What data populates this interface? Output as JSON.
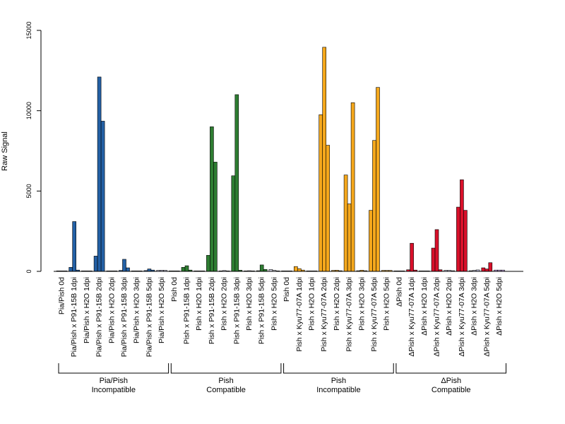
{
  "chart_data": {
    "type": "bar",
    "ylabel": "Raw Signal",
    "ylim": [
      0,
      15000
    ],
    "yticks": [
      0,
      5000,
      10000,
      15000
    ],
    "grid": false,
    "bars_per_category": 3,
    "categories": [
      "Pia/Pish 0d",
      "Pia/Pish x P91-15B 1dpi",
      "Pia/Pish x H2O 1dpi",
      "Pia/Pish x P91-15B 2dpi",
      "Pia/Pish x H2O 2dpi",
      "Pia/Pish x P91-15B 3dpi",
      "Pia/Pish x H2O 3dpi",
      "Pia/Pish x P91-15B 5dpi",
      "Pia/Pish x H2O 5dpi",
      "Pish 0d",
      "Pish x P91-15B 1dpi",
      "Pish x H2O 1dpi",
      "Pish x P91-15B 2dpi",
      "Pish x H2O 2dpi",
      "Pish x P91-15B 3dpi",
      "Pish x H2O 3dpi",
      "Pish x P91-15B 5dpi",
      "Pish x H2O 5dpi",
      "Pish 0d",
      "Pish x Kyu77-07A 1dpi",
      "Pish x H2O 1dpi",
      "Pish x Kyu77-07A 2dpi",
      "Pish x H2O 2dpi",
      "Pish x Kyu77-07A 3dpi",
      "Pish x H2O 3dpi",
      "Pish x Kyu77-07A 5dpi",
      "Pish x H2O 5dpi",
      "ΔPish 0d",
      "ΔPish x Kyu77-07A 1dpi",
      "ΔPish x H2O 1dpi",
      "ΔPish x Kyu77-07A 2dpi",
      "ΔPish x H2O 2dpi",
      "ΔPish x Kyu77-07A 3dpi",
      "ΔPish x H2O 3dpi",
      "ΔPish x Kyu77-07A 5dpi",
      "ΔPish x H2O 5dpi"
    ],
    "values": [
      [
        30,
        30,
        30
      ],
      [
        250,
        3100,
        80
      ],
      [
        30,
        30,
        30
      ],
      [
        950,
        12100,
        9350
      ],
      [
        30,
        30,
        30
      ],
      [
        60,
        750,
        220
      ],
      [
        30,
        30,
        30
      ],
      [
        50,
        150,
        80
      ],
      [
        60,
        70,
        60
      ],
      [
        30,
        30,
        30
      ],
      [
        250,
        350,
        80
      ],
      [
        30,
        30,
        30
      ],
      [
        1000,
        9000,
        6800
      ],
      [
        30,
        50,
        30
      ],
      [
        5950,
        11000,
        70
      ],
      [
        30,
        40,
        30
      ],
      [
        40,
        400,
        120
      ],
      [
        120,
        60,
        30
      ],
      [
        30,
        30,
        30
      ],
      [
        300,
        170,
        80
      ],
      [
        30,
        30,
        30
      ],
      [
        9750,
        13950,
        7850
      ],
      [
        60,
        70,
        40
      ],
      [
        6000,
        4200,
        10500
      ],
      [
        40,
        70,
        40
      ],
      [
        3800,
        8150,
        11450
      ],
      [
        60,
        60,
        60
      ],
      [
        30,
        30,
        30
      ],
      [
        100,
        1750,
        80
      ],
      [
        30,
        30,
        30
      ],
      [
        1450,
        2600,
        100
      ],
      [
        60,
        60,
        40
      ],
      [
        4000,
        5700,
        3800
      ],
      [
        40,
        60,
        90
      ],
      [
        220,
        150,
        540
      ],
      [
        80,
        80,
        80
      ]
    ],
    "colors": [
      "#2360a5",
      "#2360a5",
      "#2360a5",
      "#2360a5",
      "#c8c8e8",
      "#2360a5",
      "#c8c8e8",
      "#2360a5",
      "#c8c8e8",
      "#2e7d32",
      "#2e7d32",
      "#c8c8e8",
      "#2e7d32",
      "#c8c8e8",
      "#2e7d32",
      "#c8c8e8",
      "#2e7d32",
      "#d8d8e8",
      "#f5a81c",
      "#f5a81c",
      "#c8c8e8",
      "#f5a81c",
      "#f5a81c",
      "#f5a81c",
      "#f5a81c",
      "#f5a81c",
      "#f5a81c",
      "#d8102a",
      "#d8102a",
      "#c8c8e8",
      "#d8102a",
      "#c8c8e8",
      "#d8102a",
      "#c8c8e8",
      "#d8102a",
      "#c8a8e8"
    ],
    "groups": [
      {
        "line1": "Pia/Pish",
        "line2": "Incompatible",
        "start": 0,
        "end": 8
      },
      {
        "line1": "Pish",
        "line2": "Compatible",
        "start": 9,
        "end": 17
      },
      {
        "line1": "Pish",
        "line2": "Incompatible",
        "start": 18,
        "end": 26
      },
      {
        "line1": "ΔPish",
        "line2": "Compatible",
        "start": 27,
        "end": 35
      }
    ]
  }
}
